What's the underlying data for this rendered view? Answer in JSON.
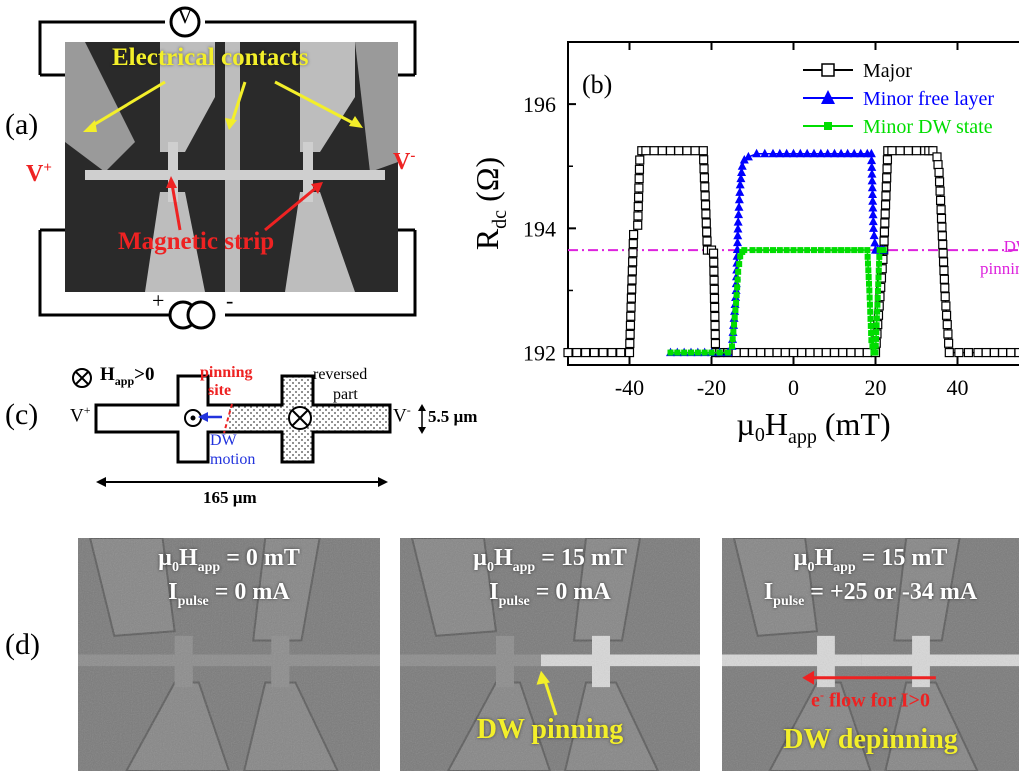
{
  "panel_a": {
    "label": "(a)",
    "voltmeter_symbol": "V",
    "contacts_label": "Electrical contacts",
    "strip_label": "Magnetic strip",
    "v_plus": "V",
    "v_plus_sup": "+",
    "v_minus": "V",
    "v_minus_sup": "-",
    "source_plus": "+",
    "source_minus": "-"
  },
  "panel_b": {
    "label": "(b)",
    "dw_label_1": "DW",
    "dw_label_2": "pinning"
  },
  "panel_c": {
    "label": "(c)",
    "h_field": "H",
    "h_field_sub": "app",
    "h_field_cond": ">0",
    "pinning_1": "pinning",
    "pinning_2": "site",
    "reversed_1": "reversed",
    "reversed_2": "part",
    "dw_1": "DW",
    "dw_2": "motion",
    "v_plus": "V",
    "v_plus_sup": "+",
    "v_minus": "V",
    "v_minus_sup": "-",
    "width_dim": "5.5 µm",
    "length_dim": "165 µm"
  },
  "panel_d": {
    "label": "(d)",
    "images": [
      {
        "line1_pre": "µ",
        "line1_sub0": "0",
        "line1_mid": "H",
        "line1_sub": "app",
        "line1_post": " = 0 mT",
        "line2_pre": "I",
        "line2_sub": "pulse",
        "line2_post": " = 0 mA",
        "caption": ""
      },
      {
        "line1_pre": "µ",
        "line1_sub0": "0",
        "line1_mid": "H",
        "line1_sub": "app",
        "line1_post": " = 15 mT",
        "line2_pre": "I",
        "line2_sub": "pulse",
        "line2_post": " = 0 mA",
        "caption": "DW pinning"
      },
      {
        "line1_pre": "µ",
        "line1_sub0": "0",
        "line1_mid": "H",
        "line1_sub": "app",
        "line1_post": " = 15 mT",
        "line2_pre": "I",
        "line2_sub": "pulse",
        "line2_post": " = +25 or -34 mA",
        "caption": "DW depinning",
        "flow_label": "e",
        "flow_sup": "-",
        "flow_rest": " flow for I>0"
      }
    ]
  },
  "chart_data": {
    "type": "line",
    "xlabel": "µ0Happ (mT)",
    "ylabel": "Rdc (Ω)",
    "xlim": [
      -55,
      55
    ],
    "ylim": [
      191.8,
      197.0
    ],
    "xticks": [
      -40,
      -20,
      0,
      20,
      40
    ],
    "yticks": [
      192,
      194,
      196
    ],
    "legend_position": "top-right",
    "dw_pinning_level": 193.65,
    "series": [
      {
        "name": "Major",
        "color": "#000000",
        "marker": "open-square",
        "x": [
          -55,
          -40,
          -39,
          -38,
          -37.5,
          -37,
          -36,
          -34,
          -30,
          -26,
          -22,
          -21,
          -20,
          -19.5,
          -19,
          -18,
          -10,
          0,
          10,
          20,
          22,
          23,
          24,
          28,
          30,
          32,
          33,
          34,
          35,
          35.5,
          36,
          37,
          38,
          45,
          55
        ],
        "y": [
          192,
          192,
          193.9,
          194.05,
          195.1,
          195.25,
          195.25,
          195.25,
          195.25,
          195.25,
          195.25,
          193.65,
          193.65,
          193.6,
          192,
          192,
          192,
          192,
          192,
          192,
          193.65,
          195.25,
          195.25,
          195.25,
          195.25,
          195.25,
          195.25,
          195.25,
          195.15,
          194.9,
          194.3,
          192.9,
          192,
          192,
          192
        ]
      },
      {
        "name": "Minor free layer",
        "color": "#0000ff",
        "marker": "filled-triangle",
        "x": [
          -30,
          -20,
          -16,
          -15,
          -14,
          -13.5,
          -13,
          -12.5,
          -12,
          -11,
          -9,
          -5,
          0,
          10,
          18,
          19,
          19.5,
          20,
          20.5,
          21,
          21.5,
          22
        ],
        "y": [
          192,
          192,
          192,
          192.1,
          193.0,
          194.1,
          194.7,
          195.0,
          195.1,
          195.15,
          195.2,
          195.2,
          195.2,
          195.2,
          195.2,
          195.2,
          194.0,
          193.65,
          193.65,
          193.65,
          193.65,
          193.65
        ]
      },
      {
        "name": "Minor DW state",
        "color": "#00dd00",
        "marker": "filled-square",
        "x": [
          -30,
          -20,
          -16,
          -15,
          -14,
          -13.5,
          -13,
          -12.5,
          -12,
          -10,
          0,
          10,
          18,
          18.5,
          19,
          19.5,
          20,
          21,
          22
        ],
        "y": [
          192,
          192,
          192,
          192.1,
          192.8,
          193.3,
          193.55,
          193.62,
          193.65,
          193.65,
          193.65,
          193.65,
          193.65,
          193.0,
          192.2,
          192,
          192,
          193.65,
          193.65
        ]
      }
    ]
  }
}
